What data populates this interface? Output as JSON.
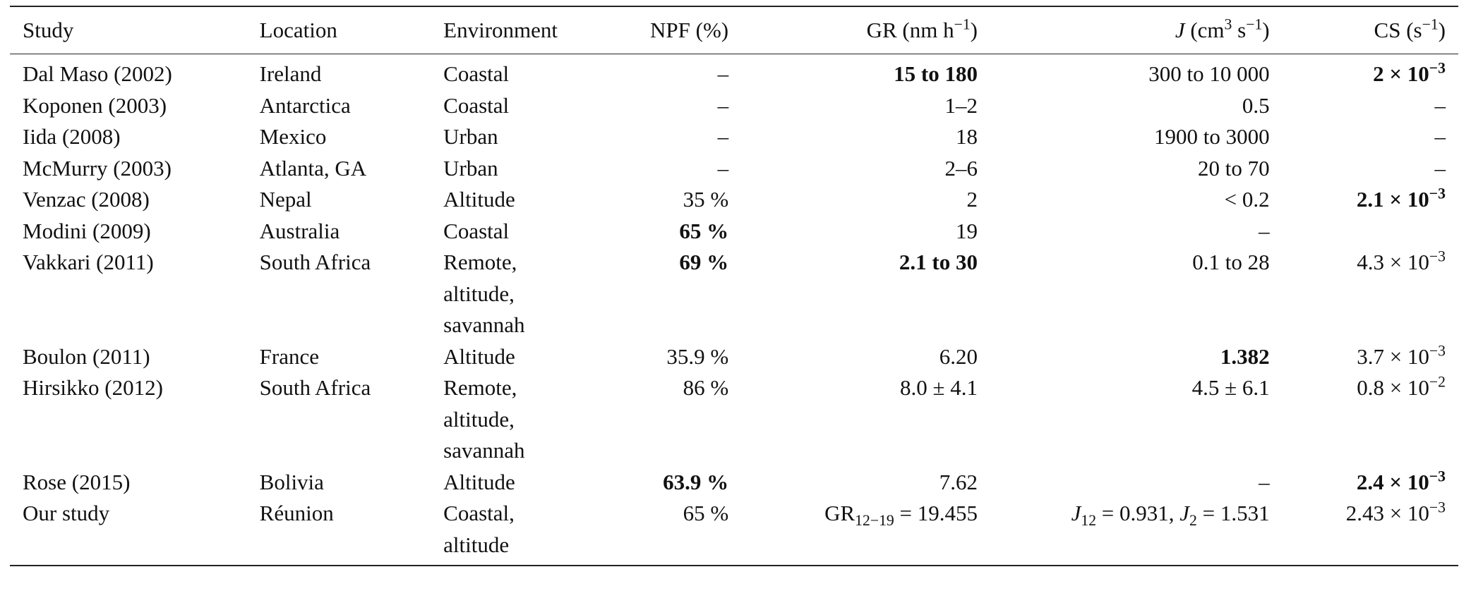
{
  "table": {
    "headers": {
      "study": "Study",
      "location": "Location",
      "environment": "Environment",
      "npf": "NPF (%)",
      "gr": "GR (nm h",
      "gr_sup": "−1",
      "gr_close": ")",
      "j_var": "J",
      "j_text": " (cm",
      "j_sup1": "3",
      "j_mid": " s",
      "j_sup2": "−1",
      "j_close": ")",
      "cs": "CS (s",
      "cs_sup": "−1",
      "cs_close": ")"
    },
    "rows": [
      {
        "study": "Dal Maso (2002)",
        "location": "Ireland",
        "env": [
          "Coastal"
        ],
        "npf": "–",
        "gr": "15 to 180",
        "j": "300 to 10 000",
        "cs_base": "2 × 10",
        "cs_exp": "−3"
      },
      {
        "study": "Koponen (2003)",
        "location": "Antarctica",
        "env": [
          "Coastal"
        ],
        "npf": "–",
        "gr": "1–2",
        "j": "0.5",
        "cs_text": "–"
      },
      {
        "study": "Iida (2008)",
        "location": "Mexico",
        "env": [
          "Urban"
        ],
        "npf": "–",
        "gr": "18",
        "j": "1900 to 3000",
        "cs_text": "–"
      },
      {
        "study": "McMurry (2003)",
        "location": "Atlanta, GA",
        "env": [
          "Urban"
        ],
        "npf": "–",
        "gr": "2–6",
        "j": "20 to 70",
        "cs_text": "–"
      },
      {
        "study": "Venzac (2008)",
        "location": "Nepal",
        "env": [
          "Altitude"
        ],
        "npf": "35 %",
        "gr": "2",
        "j": "< 0.2",
        "cs_base": "2.1 × 10",
        "cs_exp": "−3"
      },
      {
        "study": "Modini (2009)",
        "location": "Australia",
        "env": [
          "Coastal"
        ],
        "npf": "65 %",
        "gr": "19",
        "j": "–",
        "cs_text": ""
      },
      {
        "study": "Vakkari (2011)",
        "location": "South Africa",
        "env": [
          "Remote,",
          "altitude,",
          "savannah"
        ],
        "npf": "69 %",
        "gr": "2.1 to 30",
        "j": "0.1 to 28",
        "cs_base": "4.3 × 10",
        "cs_exp": "−3"
      },
      {
        "study": "Boulon (2011)",
        "location": "France",
        "env": [
          "Altitude"
        ],
        "npf": "35.9 %",
        "gr": "6.20",
        "j": "1.382",
        "cs_base": "3.7 × 10",
        "cs_exp": "−3"
      },
      {
        "study": "Hirsikko (2012)",
        "location": "South Africa",
        "env": [
          "Remote,",
          "altitude,",
          "savannah"
        ],
        "npf": "86 %",
        "gr": "8.0 ± 4.1",
        "j": "4.5 ± 6.1",
        "cs_base": "0.8 × 10",
        "cs_exp": "−2"
      },
      {
        "study": "Rose (2015)",
        "location": "Bolivia",
        "env": [
          "Altitude"
        ],
        "npf": "63.9 %",
        "gr": "7.62",
        "j": "–",
        "cs_base": "2.4 × 10",
        "cs_exp": "−3"
      },
      {
        "study": "Our study",
        "location": "Réunion",
        "env": [
          "Coastal,",
          "altitude"
        ],
        "npf": "65 %",
        "gr_prefix": "GR",
        "gr_sub": "12−19",
        "gr_eq": " = 19.455",
        "j1": "J",
        "j1_sub": "12",
        "j1_eq": " = 0.931, ",
        "j2": "J",
        "j2_sub": "2",
        "j2_eq": " = 1.531",
        "cs_base": "2.43 × 10",
        "cs_exp": "−3"
      }
    ]
  }
}
